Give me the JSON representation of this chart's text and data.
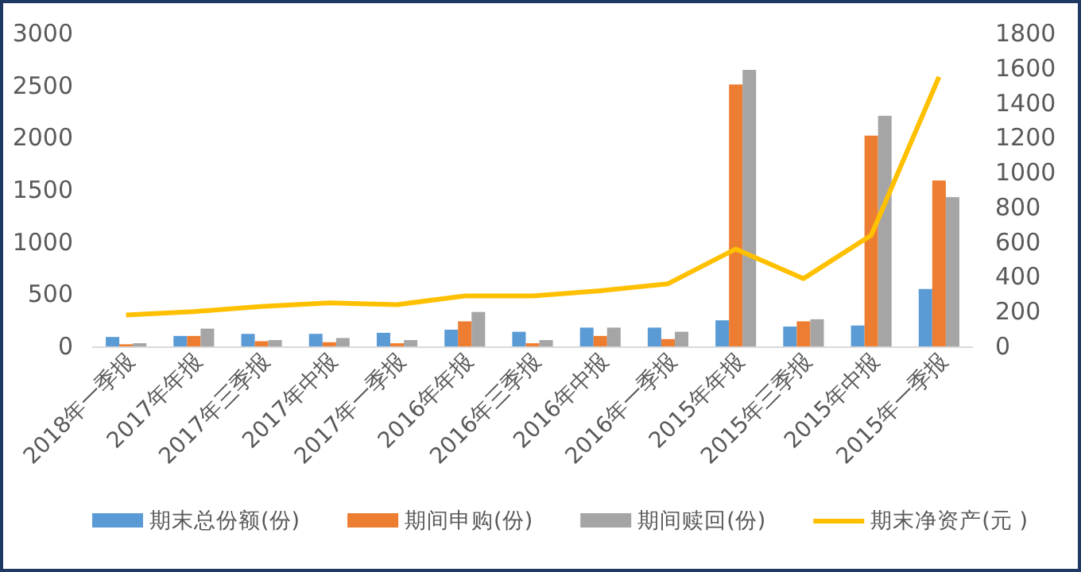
{
  "chart_data": {
    "type": "bar",
    "categories": [
      "2018年一季报",
      "2017年年报",
      "2017年三季报",
      "2017年中报",
      "2017年一季报",
      "2016年年报",
      "2016年三季报",
      "2016年中报",
      "2016年一季报",
      "2015年年报",
      "2015年三季报",
      "2015年中报",
      "2015年一季报"
    ],
    "series": [
      {
        "name": "期末总份额(份)",
        "color": "#5b9bd5",
        "values": [
          90,
          100,
          120,
          120,
          130,
          160,
          140,
          180,
          180,
          250,
          190,
          200,
          550
        ]
      },
      {
        "name": "期间申购(份)",
        "color": "#ed7d31",
        "values": [
          20,
          100,
          50,
          40,
          30,
          240,
          30,
          100,
          70,
          2510,
          240,
          2020,
          1590
        ]
      },
      {
        "name": "期间赎回(份)",
        "color": "#a5a5a5",
        "values": [
          30,
          170,
          60,
          80,
          60,
          330,
          60,
          180,
          140,
          2650,
          260,
          2210,
          1430
        ]
      },
      {
        "name": "期末净资产(元 )",
        "color": "#ffc000",
        "type": "line",
        "axis": "y2",
        "values": [
          180,
          200,
          230,
          250,
          240,
          290,
          290,
          320,
          360,
          560,
          390,
          640,
          1550
        ]
      }
    ],
    "ylim": [
      0,
      3000
    ],
    "yticks": [
      0,
      500,
      1000,
      1500,
      2000,
      2500,
      3000
    ],
    "y2lim": [
      0,
      1800
    ],
    "y2ticks": [
      0,
      200,
      400,
      600,
      800,
      1000,
      1200,
      1400,
      1600,
      1800
    ],
    "legend": "bottom",
    "grid": false
  }
}
